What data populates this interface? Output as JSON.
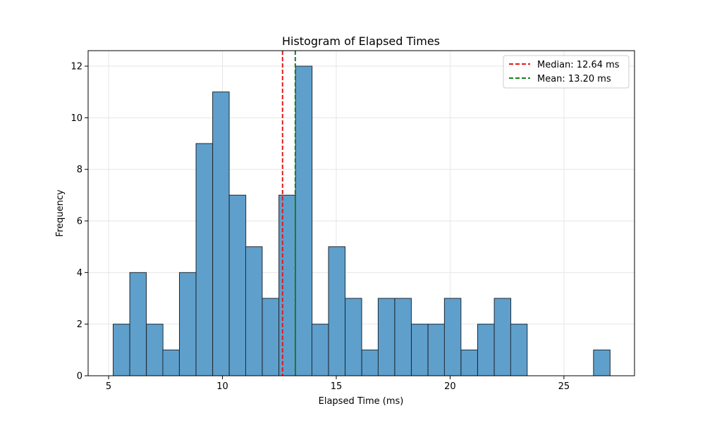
{
  "chart_data": {
    "type": "bar",
    "title": "Histogram of Elapsed Times",
    "xlabel": "Elapsed Time (ms)",
    "ylabel": "Frequency",
    "xlim": [
      4.1,
      28.1
    ],
    "ylim": [
      0,
      12.6
    ],
    "xticks": [
      5,
      10,
      15,
      20,
      25
    ],
    "yticks": [
      0,
      2,
      4,
      6,
      8,
      10,
      12
    ],
    "grid": true,
    "legend_position": "top-right",
    "bin_width": 0.727,
    "bins": [
      {
        "x0": 5.2,
        "count": 2
      },
      {
        "x0": 5.93,
        "count": 4
      },
      {
        "x0": 6.66,
        "count": 2
      },
      {
        "x0": 7.38,
        "count": 1
      },
      {
        "x0": 8.11,
        "count": 4
      },
      {
        "x0": 8.84,
        "count": 9
      },
      {
        "x0": 9.57,
        "count": 11
      },
      {
        "x0": 10.3,
        "count": 7
      },
      {
        "x0": 11.02,
        "count": 5
      },
      {
        "x0": 11.75,
        "count": 3
      },
      {
        "x0": 12.48,
        "count": 7
      },
      {
        "x0": 13.21,
        "count": 12
      },
      {
        "x0": 13.93,
        "count": 2
      },
      {
        "x0": 14.66,
        "count": 5
      },
      {
        "x0": 15.39,
        "count": 3
      },
      {
        "x0": 16.12,
        "count": 1
      },
      {
        "x0": 16.84,
        "count": 3
      },
      {
        "x0": 17.57,
        "count": 3
      },
      {
        "x0": 18.3,
        "count": 2
      },
      {
        "x0": 19.03,
        "count": 2
      },
      {
        "x0": 19.75,
        "count": 3
      },
      {
        "x0": 20.48,
        "count": 1
      },
      {
        "x0": 21.21,
        "count": 2
      },
      {
        "x0": 21.94,
        "count": 3
      },
      {
        "x0": 22.66,
        "count": 2
      },
      {
        "x0": 23.39,
        "count": 0
      },
      {
        "x0": 24.12,
        "count": 0
      },
      {
        "x0": 24.85,
        "count": 0
      },
      {
        "x0": 25.57,
        "count": 0
      },
      {
        "x0": 26.3,
        "count": 1
      }
    ],
    "reference_lines": [
      {
        "label": "Median: 12.64 ms",
        "value": 12.64,
        "color": "#e41a1c"
      },
      {
        "label": "Mean: 13.20 ms",
        "value": 13.2,
        "color": "#1a7f1a"
      }
    ],
    "bar_color": "#5f9fcc",
    "bar_edge_color": "#1f2a33"
  }
}
